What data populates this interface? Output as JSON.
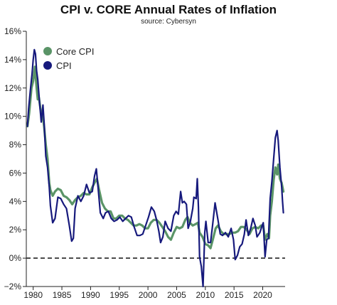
{
  "chart_data": {
    "type": "line",
    "title": "CPI v. CORE Annual Rates of Inflation",
    "subtitle": "source: Cybersyn",
    "xlabel": "",
    "ylabel": "",
    "xlim": [
      1978.8,
      2023.9
    ],
    "ylim": [
      -2,
      16
    ],
    "x_ticks": [
      1980,
      1985,
      1990,
      1995,
      2000,
      2005,
      2010,
      2015,
      2020
    ],
    "x_tick_labels": [
      "1980",
      "1985",
      "1990",
      "1995",
      "2000",
      "2005",
      "2010",
      "2015",
      "2020"
    ],
    "y_ticks": [
      -2,
      0,
      2,
      4,
      6,
      8,
      10,
      12,
      14,
      16
    ],
    "y_tick_labels": [
      "−2%",
      "0%",
      "2%",
      "4%",
      "6%",
      "8%",
      "10%",
      "12%",
      "14%",
      "16%"
    ],
    "reference_line": {
      "y": 0,
      "style": "dashed",
      "color": "#222222"
    },
    "grid": false,
    "legend": {
      "position": "top-left"
    },
    "series": [
      {
        "name": "Core CPI",
        "color": "#5a9467",
        "points": [
          [
            1979.0,
            9.3
          ],
          [
            1979.3,
            10.2
          ],
          [
            1979.7,
            12.0
          ],
          [
            1980.0,
            12.5
          ],
          [
            1980.3,
            13.5
          ],
          [
            1980.6,
            12.0
          ],
          [
            1980.8,
            11.2
          ],
          [
            1981.0,
            11.3
          ],
          [
            1981.3,
            10.4
          ],
          [
            1981.6,
            10.2
          ],
          [
            1981.9,
            9.3
          ],
          [
            1982.2,
            8.0
          ],
          [
            1982.5,
            7.0
          ],
          [
            1982.8,
            5.3
          ],
          [
            1983.0,
            4.8
          ],
          [
            1983.4,
            4.4
          ],
          [
            1983.8,
            4.7
          ],
          [
            1984.3,
            4.9
          ],
          [
            1984.8,
            4.8
          ],
          [
            1985.3,
            4.4
          ],
          [
            1985.8,
            4.3
          ],
          [
            1986.3,
            4.1
          ],
          [
            1986.8,
            3.8
          ],
          [
            1987.3,
            4.1
          ],
          [
            1987.8,
            4.3
          ],
          [
            1988.3,
            4.4
          ],
          [
            1988.8,
            4.6
          ],
          [
            1989.3,
            4.5
          ],
          [
            1989.8,
            4.5
          ],
          [
            1990.3,
            5.0
          ],
          [
            1990.8,
            5.4
          ],
          [
            1991.1,
            5.6
          ],
          [
            1991.5,
            4.8
          ],
          [
            1992.0,
            3.9
          ],
          [
            1992.5,
            3.5
          ],
          [
            1993.0,
            3.3
          ],
          [
            1993.5,
            3.3
          ],
          [
            1994.0,
            2.8
          ],
          [
            1994.5,
            2.8
          ],
          [
            1995.0,
            3.0
          ],
          [
            1995.5,
            3.0
          ],
          [
            1996.0,
            2.8
          ],
          [
            1996.5,
            2.7
          ],
          [
            1997.0,
            2.5
          ],
          [
            1997.5,
            2.3
          ],
          [
            1998.0,
            2.3
          ],
          [
            1998.5,
            2.4
          ],
          [
            1999.0,
            2.3
          ],
          [
            1999.5,
            2.1
          ],
          [
            2000.0,
            2.1
          ],
          [
            2000.5,
            2.5
          ],
          [
            2001.0,
            2.7
          ],
          [
            2001.5,
            2.7
          ],
          [
            2002.0,
            2.5
          ],
          [
            2002.5,
            2.2
          ],
          [
            2003.0,
            1.9
          ],
          [
            2003.5,
            1.5
          ],
          [
            2004.0,
            1.3
          ],
          [
            2004.5,
            1.8
          ],
          [
            2005.0,
            2.2
          ],
          [
            2005.5,
            2.1
          ],
          [
            2006.0,
            2.2
          ],
          [
            2006.5,
            2.7
          ],
          [
            2006.9,
            2.9
          ],
          [
            2007.3,
            2.5
          ],
          [
            2007.8,
            2.3
          ],
          [
            2008.3,
            2.4
          ],
          [
            2008.7,
            2.5
          ],
          [
            2009.0,
            1.8
          ],
          [
            2009.5,
            1.5
          ],
          [
            2010.0,
            1.0
          ],
          [
            2010.5,
            0.9
          ],
          [
            2010.9,
            0.7
          ],
          [
            2011.3,
            1.3
          ],
          [
            2011.8,
            2.1
          ],
          [
            2012.2,
            2.3
          ],
          [
            2012.7,
            1.9
          ],
          [
            2013.2,
            1.7
          ],
          [
            2013.7,
            1.7
          ],
          [
            2014.2,
            1.7
          ],
          [
            2014.7,
            1.8
          ],
          [
            2015.2,
            1.8
          ],
          [
            2015.7,
            1.9
          ],
          [
            2016.2,
            2.2
          ],
          [
            2016.7,
            2.2
          ],
          [
            2017.2,
            2.0
          ],
          [
            2017.7,
            1.7
          ],
          [
            2018.2,
            2.1
          ],
          [
            2018.7,
            2.2
          ],
          [
            2019.2,
            2.1
          ],
          [
            2019.7,
            2.3
          ],
          [
            2020.1,
            2.3
          ],
          [
            2020.4,
            1.3
          ],
          [
            2020.8,
            1.7
          ],
          [
            2021.1,
            1.4
          ],
          [
            2021.3,
            3.0
          ],
          [
            2021.6,
            4.0
          ],
          [
            2021.9,
            5.5
          ],
          [
            2022.2,
            6.4
          ],
          [
            2022.5,
            5.9
          ],
          [
            2022.7,
            6.6
          ],
          [
            2023.0,
            5.6
          ],
          [
            2023.3,
            5.3
          ],
          [
            2023.6,
            4.7
          ]
        ]
      },
      {
        "name": "CPI",
        "color": "#16197c",
        "points": [
          [
            1979.0,
            9.3
          ],
          [
            1979.2,
            10.5
          ],
          [
            1979.5,
            11.8
          ],
          [
            1979.8,
            13.0
          ],
          [
            1980.0,
            14.0
          ],
          [
            1980.2,
            14.7
          ],
          [
            1980.4,
            14.4
          ],
          [
            1980.6,
            13.2
          ],
          [
            1980.8,
            12.6
          ],
          [
            1981.1,
            11.0
          ],
          [
            1981.4,
            9.6
          ],
          [
            1981.7,
            10.8
          ],
          [
            1981.9,
            9.6
          ],
          [
            1982.2,
            7.2
          ],
          [
            1982.5,
            6.4
          ],
          [
            1982.8,
            5.0
          ],
          [
            1983.0,
            3.7
          ],
          [
            1983.4,
            2.5
          ],
          [
            1983.8,
            2.8
          ],
          [
            1984.3,
            4.3
          ],
          [
            1984.8,
            4.2
          ],
          [
            1985.3,
            3.8
          ],
          [
            1985.8,
            3.5
          ],
          [
            1986.3,
            2.3
          ],
          [
            1986.7,
            1.2
          ],
          [
            1987.0,
            1.4
          ],
          [
            1987.3,
            3.5
          ],
          [
            1987.8,
            4.4
          ],
          [
            1988.3,
            4.0
          ],
          [
            1988.8,
            4.4
          ],
          [
            1989.3,
            5.2
          ],
          [
            1989.8,
            4.6
          ],
          [
            1990.3,
            4.7
          ],
          [
            1990.7,
            5.8
          ],
          [
            1991.0,
            6.3
          ],
          [
            1991.3,
            5.0
          ],
          [
            1991.7,
            3.2
          ],
          [
            1992.2,
            2.8
          ],
          [
            1992.6,
            3.2
          ],
          [
            1993.1,
            3.3
          ],
          [
            1993.6,
            2.8
          ],
          [
            1994.1,
            2.6
          ],
          [
            1994.6,
            2.7
          ],
          [
            1995.1,
            2.9
          ],
          [
            1995.6,
            2.6
          ],
          [
            1996.1,
            2.8
          ],
          [
            1996.6,
            3.0
          ],
          [
            1997.1,
            2.9
          ],
          [
            1997.6,
            2.2
          ],
          [
            1998.1,
            1.6
          ],
          [
            1998.6,
            1.6
          ],
          [
            1999.1,
            1.7
          ],
          [
            1999.6,
            2.3
          ],
          [
            2000.1,
            2.9
          ],
          [
            2000.6,
            3.6
          ],
          [
            2001.1,
            3.3
          ],
          [
            2001.5,
            2.7
          ],
          [
            2001.9,
            1.9
          ],
          [
            2002.2,
            1.1
          ],
          [
            2002.6,
            1.5
          ],
          [
            2003.0,
            2.6
          ],
          [
            2003.5,
            2.1
          ],
          [
            2004.0,
            1.9
          ],
          [
            2004.5,
            3.0
          ],
          [
            2004.9,
            3.3
          ],
          [
            2005.3,
            3.1
          ],
          [
            2005.7,
            4.7
          ],
          [
            2006.0,
            3.9
          ],
          [
            2006.3,
            4.0
          ],
          [
            2006.7,
            3.8
          ],
          [
            2007.0,
            2.1
          ],
          [
            2007.4,
            2.6
          ],
          [
            2007.8,
            3.5
          ],
          [
            2008.0,
            4.3
          ],
          [
            2008.4,
            4.2
          ],
          [
            2008.6,
            5.6
          ],
          [
            2008.8,
            3.6
          ],
          [
            2009.0,
            0.1
          ],
          [
            2009.3,
            -0.6
          ],
          [
            2009.6,
            -2.0
          ],
          [
            2009.9,
            1.8
          ],
          [
            2010.1,
            2.6
          ],
          [
            2010.5,
            1.1
          ],
          [
            2010.9,
            1.1
          ],
          [
            2011.2,
            2.1
          ],
          [
            2011.7,
            3.9
          ],
          [
            2012.2,
            2.7
          ],
          [
            2012.6,
            1.7
          ],
          [
            2013.0,
            1.6
          ],
          [
            2013.5,
            1.8
          ],
          [
            2014.0,
            1.5
          ],
          [
            2014.5,
            2.1
          ],
          [
            2014.9,
            1.3
          ],
          [
            2015.2,
            -0.1
          ],
          [
            2015.6,
            0.2
          ],
          [
            2016.0,
            0.8
          ],
          [
            2016.4,
            1.0
          ],
          [
            2016.8,
            1.7
          ],
          [
            2017.1,
            2.7
          ],
          [
            2017.5,
            1.6
          ],
          [
            2017.9,
            2.1
          ],
          [
            2018.3,
            2.8
          ],
          [
            2018.7,
            2.3
          ],
          [
            2019.0,
            1.5
          ],
          [
            2019.5,
            1.8
          ],
          [
            2019.9,
            2.3
          ],
          [
            2020.1,
            2.5
          ],
          [
            2020.4,
            0.1
          ],
          [
            2020.7,
            1.3
          ],
          [
            2021.0,
            1.4
          ],
          [
            2021.3,
            4.2
          ],
          [
            2021.6,
            5.4
          ],
          [
            2021.9,
            7.0
          ],
          [
            2022.2,
            8.5
          ],
          [
            2022.5,
            9.0
          ],
          [
            2022.7,
            8.3
          ],
          [
            2023.0,
            6.4
          ],
          [
            2023.3,
            5.0
          ],
          [
            2023.45,
            4.0
          ],
          [
            2023.6,
            3.2
          ]
        ]
      }
    ]
  }
}
